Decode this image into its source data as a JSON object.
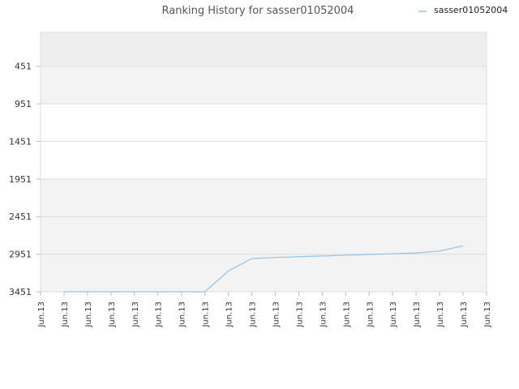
{
  "chart_data": {
    "type": "line",
    "title": "Ranking History for sasser01052004",
    "xlabel": "",
    "ylabel": "",
    "legend_position": "top-right",
    "y_inverted": true,
    "ylim": [
      3451,
      1
    ],
    "y_ticks": [
      451,
      951,
      1451,
      1951,
      2451,
      2951,
      3451
    ],
    "x_tick_labels": [
      "Jun.13",
      "Jun.13",
      "Jun.13",
      "Jun.13",
      "Jun.13",
      "Jun.13",
      "Jun.13",
      "Jun.13",
      "Jun.13",
      "Jun.13",
      "Jun.13",
      "Jun.13",
      "Jun.13",
      "Jun.13",
      "Jun.13",
      "Jun.13",
      "Jun.13",
      "Jun.13",
      "Jun.13",
      "Jun.13"
    ],
    "grid": true,
    "series": [
      {
        "name": "sasser01052004",
        "color": "#8fc3ee",
        "x_index": [
          1,
          2,
          3,
          4,
          5,
          6,
          7,
          8,
          9,
          10,
          11,
          12,
          13,
          14,
          15,
          16,
          17,
          18
        ],
        "values": [
          3451,
          3451,
          3451,
          3451,
          3451,
          3451,
          3451,
          3175,
          3010,
          2995,
          2985,
          2975,
          2965,
          2955,
          2945,
          2935,
          2910,
          2840
        ]
      }
    ]
  },
  "colors": {
    "plot_band_dark": "#eeeeee",
    "plot_band_light": "#f3f3f3",
    "plot_band_white": "#ffffff",
    "grid": "#dddddd",
    "line": "#8fc3ee"
  }
}
